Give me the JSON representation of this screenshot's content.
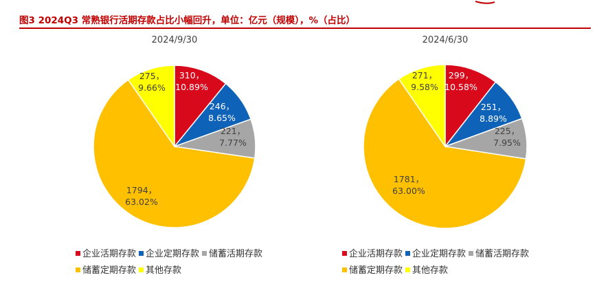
{
  "figure": {
    "title": "图3  2024Q3 常熟银行活期存款占比小幅回升，单位：亿元（规模），%（占比）"
  },
  "colors": {
    "accent": "#c00000",
    "企业活期存款": "#d7091b",
    "企业定期存款": "#0e63b8",
    "储蓄活期存款": "#a6a6a6",
    "储蓄定期存款": "#ffc000",
    "其他存款": "#ffff00"
  },
  "chart_data": [
    {
      "type": "pie",
      "title": "2024/9/30",
      "legend_position": "bottom",
      "categories": [
        "企业活期存款",
        "企业定期存款",
        "储蓄活期存款",
        "储蓄定期存款",
        "其他存款"
      ],
      "values": [
        310,
        246,
        221,
        1794,
        275
      ],
      "percent_labels": [
        "10.89%",
        "8.65%",
        "7.77%",
        "63.02%",
        "9.66%"
      ],
      "data_labels": [
        "310，",
        "246，",
        "221，",
        "1794，",
        "275，"
      ]
    },
    {
      "type": "pie",
      "title": "2024/6/30",
      "legend_position": "bottom",
      "categories": [
        "企业活期存款",
        "企业定期存款",
        "储蓄活期存款",
        "储蓄定期存款",
        "其他存款"
      ],
      "values": [
        299,
        251,
        225,
        1781,
        271
      ],
      "percent_labels": [
        "10.58%",
        "8.89%",
        "7.95%",
        "63.00%",
        "9.58%"
      ],
      "data_labels": [
        "299，",
        "251，",
        "225，",
        "1781，",
        "271，"
      ]
    }
  ]
}
